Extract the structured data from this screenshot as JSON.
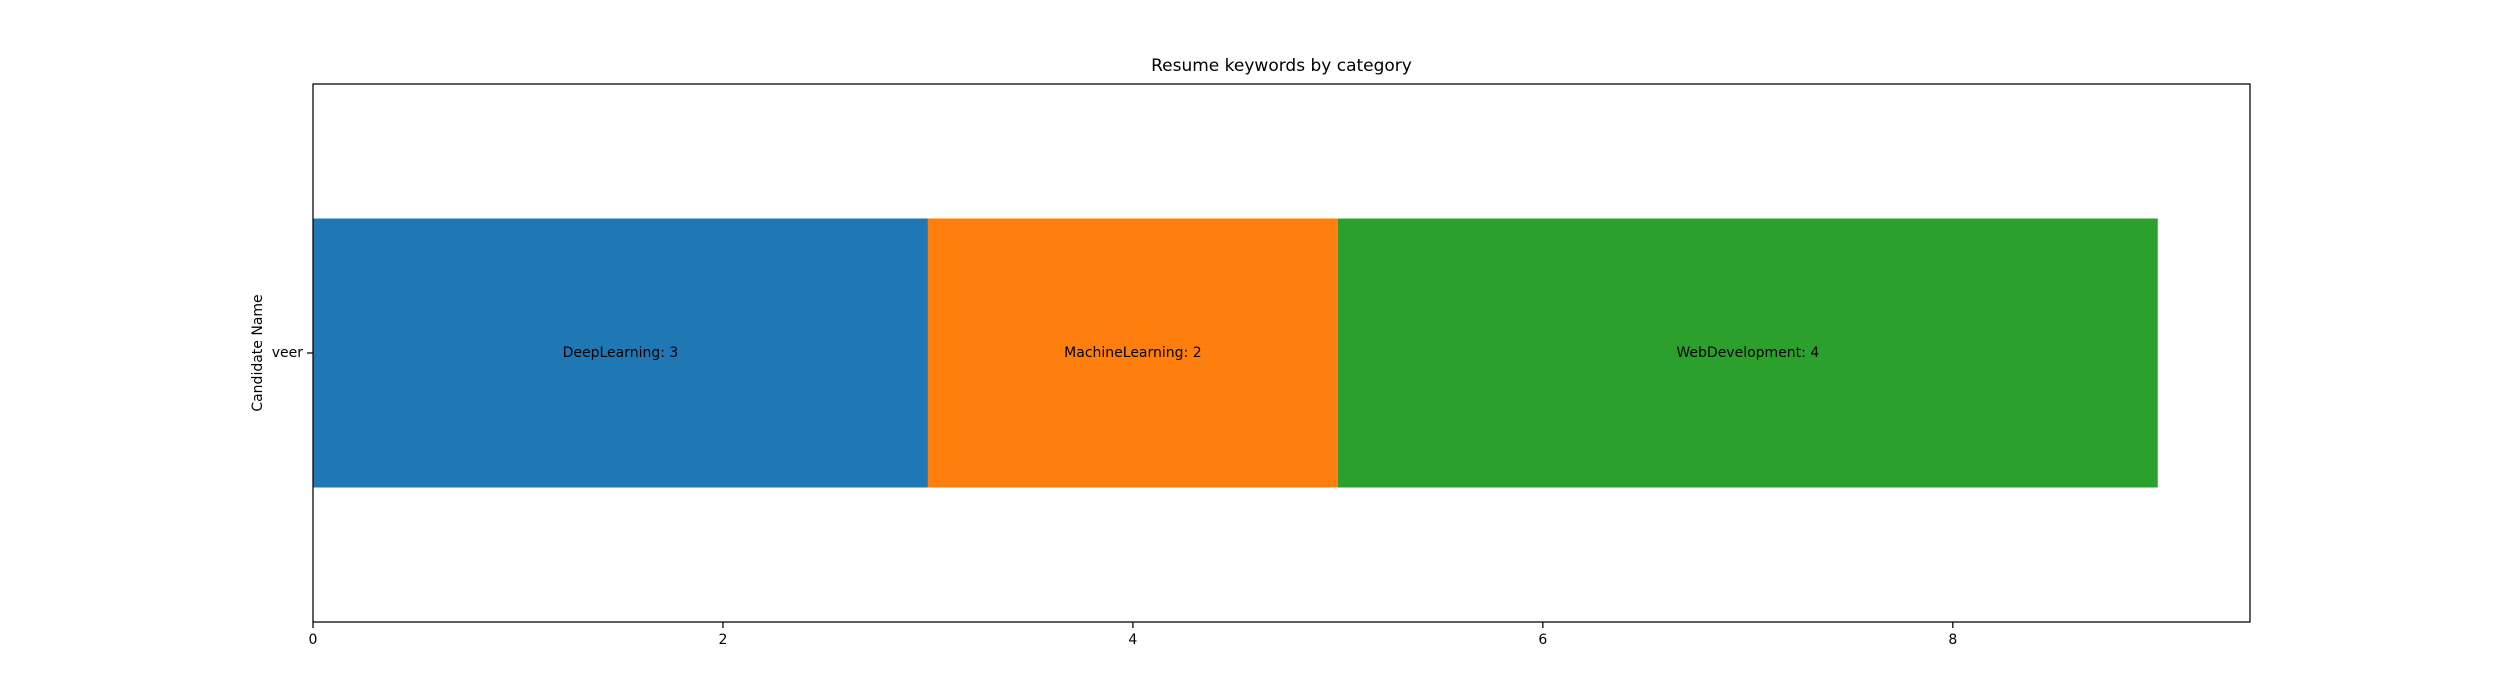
{
  "chart_data": {
    "type": "bar",
    "orientation": "horizontal",
    "stacked": true,
    "title": "Resume keywords by category",
    "xlabel": "",
    "ylabel": "Candidate Name",
    "categories": [
      "veer"
    ],
    "series": [
      {
        "name": "DeepLearning",
        "values": [
          3
        ],
        "label": "DeepLearning: 3",
        "color": "#1f77b4"
      },
      {
        "name": "MachineLearning",
        "values": [
          2
        ],
        "label": "MachineLearning: 2",
        "color": "#ff7f0e"
      },
      {
        "name": "WebDevelopment",
        "values": [
          4
        ],
        "label": "WebDevelopment: 4",
        "color": "#2ca02c"
      }
    ],
    "xlim": [
      0,
      9.45
    ],
    "xticks": [
      0,
      2,
      4,
      6,
      8
    ],
    "xtick_labels": [
      "0",
      "2",
      "4",
      "6",
      "8"
    ],
    "grid": false,
    "legend": "none"
  }
}
